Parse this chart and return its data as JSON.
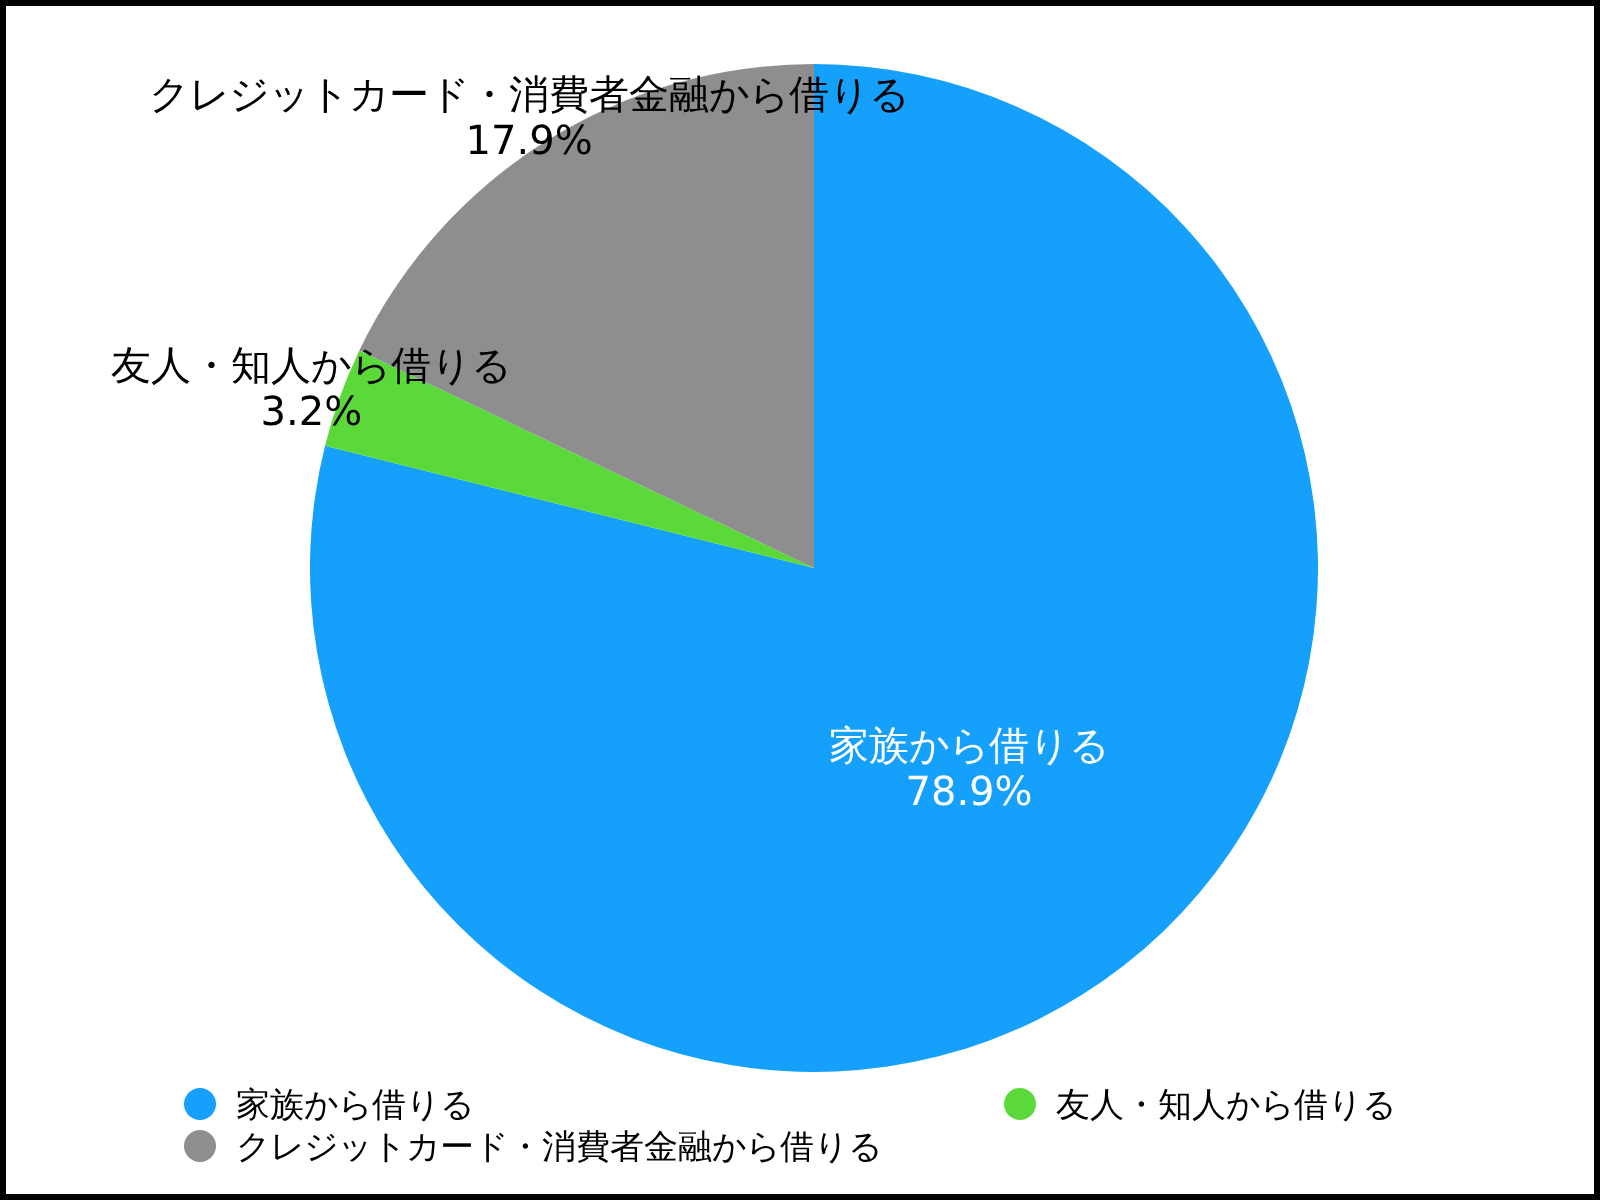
{
  "chart_data": {
    "type": "pie",
    "categories": [
      "家族から借りる",
      "友人・知人から借りる",
      "クレジットカード・消費者金融から借りる"
    ],
    "values": [
      78.9,
      3.2,
      17.9
    ],
    "colors": [
      "#14a0fb",
      "#5bd83a",
      "#8e8e8e"
    ],
    "value_labels": [
      "78.9%",
      "3.2%",
      "17.9%"
    ],
    "legend": "bottom"
  }
}
